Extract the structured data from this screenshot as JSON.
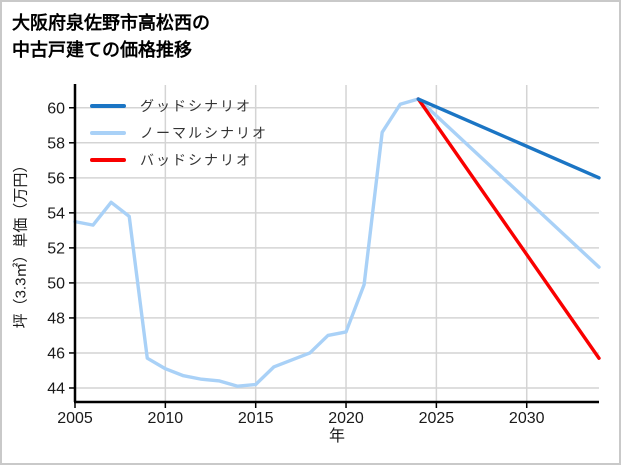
{
  "title": {
    "line1": "大阪府泉佐野市高松西の",
    "line2": "中古戸建ての価格推移"
  },
  "chart_data": {
    "type": "line",
    "title": "大阪府泉佐野市高松西の中古戸建ての価格推移",
    "xlabel": "年",
    "ylabel": "坪（3.3㎡）単価（万円）",
    "xlim": [
      2005,
      2034
    ],
    "ylim": [
      43.2,
      61.3
    ],
    "x_ticks": [
      2005,
      2010,
      2015,
      2020,
      2025,
      2030
    ],
    "y_ticks": [
      44,
      46,
      48,
      50,
      52,
      54,
      56,
      58,
      60
    ],
    "grid": true,
    "legend_position": "upper-left",
    "scenario_start_year": 2024,
    "series": [
      {
        "name": "グッドシナリオ",
        "color": "#1b75c4",
        "x": [
          2024,
          2034
        ],
        "y": [
          60.5,
          56.0
        ]
      },
      {
        "name": "ノーマルシナリオ",
        "color": "#a9d1f7",
        "x": [
          2005,
          2006,
          2007,
          2008,
          2009,
          2010,
          2011,
          2012,
          2013,
          2014,
          2015,
          2016,
          2017,
          2018,
          2019,
          2020,
          2021,
          2022,
          2023,
          2024,
          2034
        ],
        "y": [
          53.5,
          53.3,
          54.6,
          53.8,
          45.7,
          45.1,
          44.7,
          44.5,
          44.4,
          44.1,
          44.2,
          45.2,
          45.6,
          46.0,
          47.0,
          47.2,
          49.9,
          58.6,
          60.2,
          60.5,
          50.9
        ]
      },
      {
        "name": "バッドシナリオ",
        "color": "#f90000",
        "x": [
          2024,
          2034
        ],
        "y": [
          60.5,
          45.7
        ]
      }
    ],
    "style": {
      "grid_color": "#d4d4d4",
      "spine_color": "#000000",
      "tick_label_color": "#1a1a1a",
      "line_width": 3.4
    }
  }
}
